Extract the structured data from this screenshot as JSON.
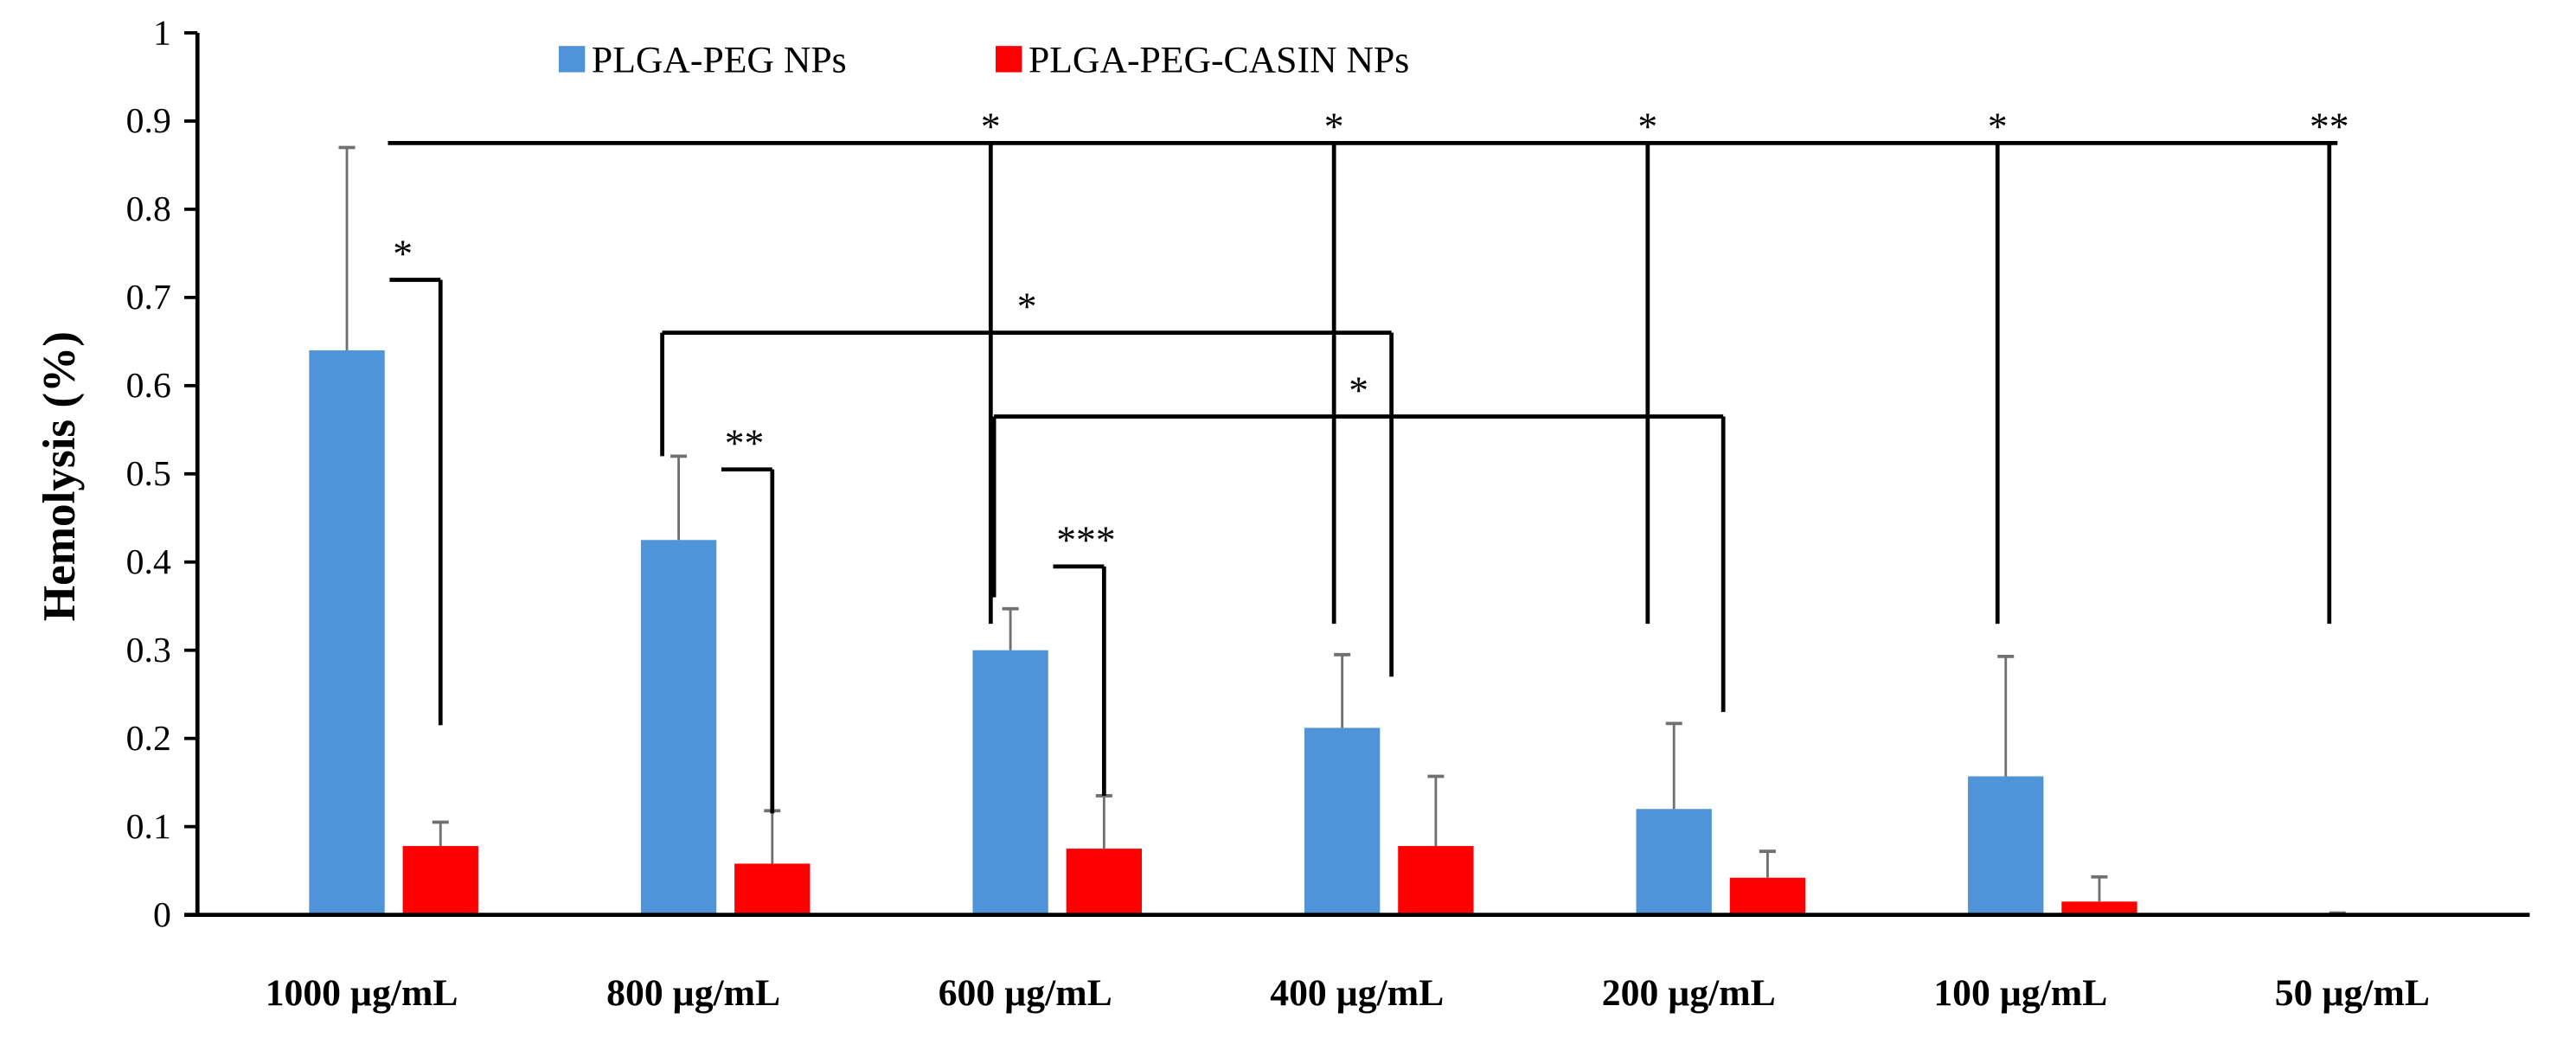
{
  "chart_data": {
    "type": "bar",
    "title": "",
    "xlabel": "",
    "ylabel": "Hemolysis (%)",
    "ylim": [
      0,
      1
    ],
    "yticks": [
      "0",
      "0.1",
      "0.2",
      "0.3",
      "0.4",
      "0.5",
      "0.6",
      "0.7",
      "0.8",
      "0.9",
      "1"
    ],
    "categories": [
      "1000 µg/mL",
      "800 µg/mL",
      "600 µg/mL",
      "400 µg/mL",
      "200 µg/mL",
      "100 µg/mL",
      "50 µg/mL"
    ],
    "legend_position": "top-center",
    "series": [
      {
        "name": "PLGA-PEG NPs",
        "color": "#4F94D9",
        "values": [
          0.64,
          0.425,
          0.3,
          0.212,
          0.12,
          0.157,
          0.0
        ],
        "error": [
          0.23,
          0.095,
          0.047,
          0.083,
          0.097,
          0.136,
          0.002
        ]
      },
      {
        "name": "PLGA-PEG-CASIN NPs",
        "color": "#FF0000",
        "values": [
          0.078,
          0.058,
          0.075,
          0.078,
          0.042,
          0.015,
          0.0
        ],
        "error": [
          0.027,
          0.06,
          0.06,
          0.079,
          0.03,
          0.028,
          0.0
        ]
      }
    ],
    "significance": [
      {
        "label": "*",
        "level": 0.72,
        "from": [
          0,
          1
        ],
        "to": [
          0,
          1
        ],
        "drops": [
          0.215
        ],
        "type": "pair"
      },
      {
        "label": "**",
        "level": 0.505,
        "from": [
          1,
          1
        ],
        "to": [
          1,
          1
        ],
        "drops": [
          0.115
        ],
        "type": "pair"
      },
      {
        "label": "***",
        "level": 0.395,
        "from": [
          2,
          1
        ],
        "to": [
          2,
          1
        ],
        "drops": [
          0.135
        ],
        "type": "pair"
      },
      {
        "label": "*",
        "level": 0.66,
        "from": [
          1,
          0
        ],
        "to": [
          3,
          0
        ],
        "drops": [
          0.52,
          0.27
        ],
        "type": "bracket"
      },
      {
        "label": "*",
        "level": 0.565,
        "from": [
          2,
          0
        ],
        "to": [
          4,
          0
        ],
        "drops": [
          0.36,
          0.23
        ],
        "type": "bracket"
      },
      {
        "label": "*",
        "level": 0.875,
        "cat": 2,
        "drop": 0.33,
        "type": "comb"
      },
      {
        "label": "*",
        "level": 0.875,
        "cat": 3,
        "drop": 0.33,
        "type": "comb"
      },
      {
        "label": "*",
        "level": 0.875,
        "cat": 4,
        "drop": 0.33,
        "type": "comb"
      },
      {
        "label": "*",
        "level": 0.875,
        "cat": 5,
        "drop": 0.33,
        "type": "comb"
      },
      {
        "label": "**",
        "level": 0.875,
        "cat": 6,
        "drop": 0.33,
        "type": "comb"
      }
    ]
  }
}
